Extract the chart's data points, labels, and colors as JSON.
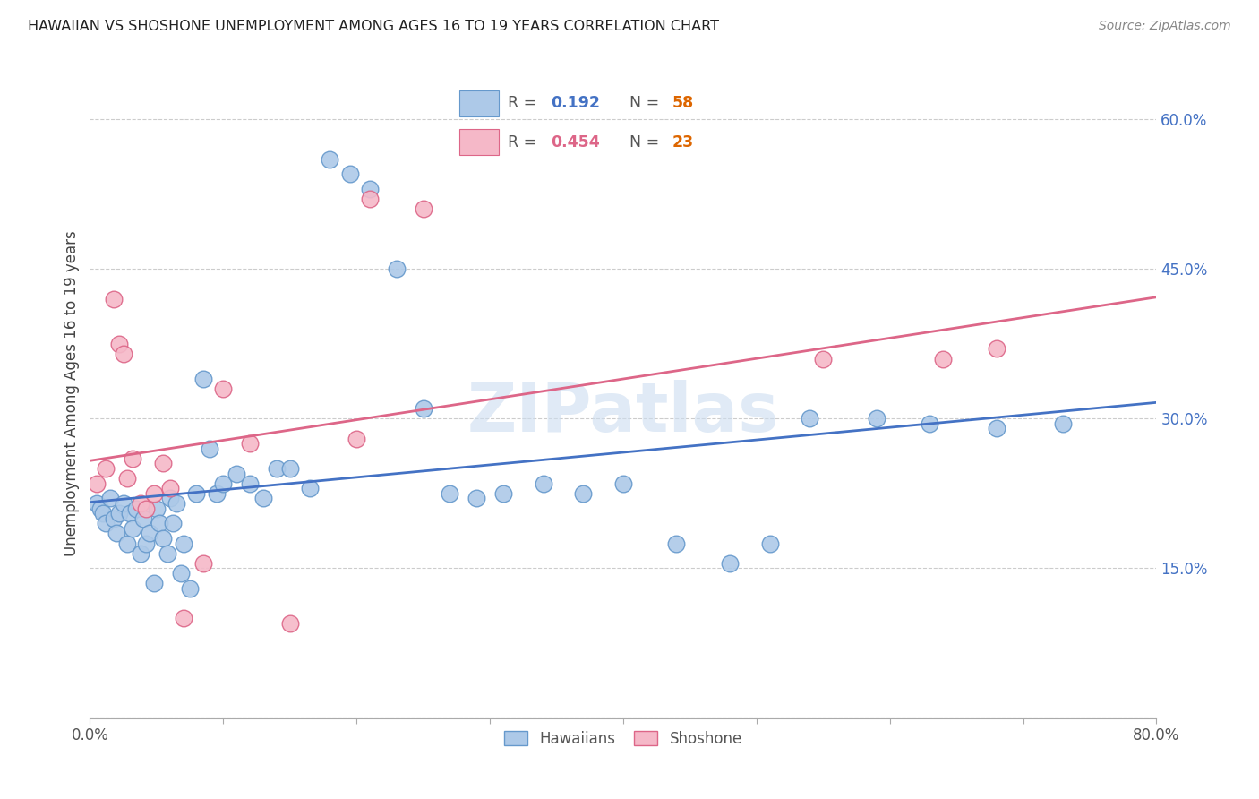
{
  "title": "HAWAIIAN VS SHOSHONE UNEMPLOYMENT AMONG AGES 16 TO 19 YEARS CORRELATION CHART",
  "source": "Source: ZipAtlas.com",
  "ylabel": "Unemployment Among Ages 16 to 19 years",
  "xlim": [
    0.0,
    0.8
  ],
  "ylim": [
    0.0,
    0.65
  ],
  "yticks": [
    0.0,
    0.15,
    0.3,
    0.45,
    0.6
  ],
  "yticklabels": [
    "",
    "15.0%",
    "30.0%",
    "45.0%",
    "60.0%"
  ],
  "xtick_vals": [
    0.0,
    0.1,
    0.2,
    0.3,
    0.4,
    0.5,
    0.6,
    0.7,
    0.8
  ],
  "xticklabels": [
    "0.0%",
    "",
    "",
    "",
    "",
    "",
    "",
    "",
    "80.0%"
  ],
  "hawaiian_color": "#adc9e8",
  "hawaiian_edge": "#6699cc",
  "shoshone_color": "#f5b8c8",
  "shoshone_edge": "#dd6688",
  "line_hawaiian": "#4472c4",
  "line_shoshone": "#dd6688",
  "watermark": "ZIPatlas",
  "hawaiians_x": [
    0.005,
    0.008,
    0.01,
    0.012,
    0.015,
    0.018,
    0.02,
    0.022,
    0.025,
    0.028,
    0.03,
    0.032,
    0.035,
    0.038,
    0.04,
    0.042,
    0.045,
    0.048,
    0.05,
    0.052,
    0.055,
    0.058,
    0.06,
    0.062,
    0.065,
    0.068,
    0.07,
    0.075,
    0.08,
    0.085,
    0.09,
    0.095,
    0.1,
    0.11,
    0.12,
    0.13,
    0.14,
    0.15,
    0.165,
    0.18,
    0.195,
    0.21,
    0.23,
    0.25,
    0.27,
    0.29,
    0.31,
    0.34,
    0.37,
    0.4,
    0.44,
    0.48,
    0.51,
    0.54,
    0.59,
    0.63,
    0.68,
    0.73
  ],
  "hawaiians_y": [
    0.215,
    0.21,
    0.205,
    0.195,
    0.22,
    0.2,
    0.185,
    0.205,
    0.215,
    0.175,
    0.205,
    0.19,
    0.21,
    0.165,
    0.2,
    0.175,
    0.185,
    0.135,
    0.21,
    0.195,
    0.18,
    0.165,
    0.22,
    0.195,
    0.215,
    0.145,
    0.175,
    0.13,
    0.225,
    0.34,
    0.27,
    0.225,
    0.235,
    0.245,
    0.235,
    0.22,
    0.25,
    0.25,
    0.23,
    0.56,
    0.545,
    0.53,
    0.45,
    0.31,
    0.225,
    0.22,
    0.225,
    0.235,
    0.225,
    0.235,
    0.175,
    0.155,
    0.175,
    0.3,
    0.3,
    0.295,
    0.29,
    0.295
  ],
  "shoshone_x": [
    0.005,
    0.012,
    0.018,
    0.022,
    0.025,
    0.028,
    0.032,
    0.038,
    0.042,
    0.048,
    0.055,
    0.06,
    0.07,
    0.085,
    0.1,
    0.12,
    0.15,
    0.2,
    0.21,
    0.25,
    0.55,
    0.64,
    0.68
  ],
  "shoshone_y": [
    0.235,
    0.25,
    0.42,
    0.375,
    0.365,
    0.24,
    0.26,
    0.215,
    0.21,
    0.225,
    0.255,
    0.23,
    0.1,
    0.155,
    0.33,
    0.275,
    0.095,
    0.28,
    0.52,
    0.51,
    0.36,
    0.36,
    0.37
  ],
  "legend_v1": "0.192",
  "legend_nv1": "58",
  "legend_v2": "0.454",
  "legend_nv2": "23"
}
